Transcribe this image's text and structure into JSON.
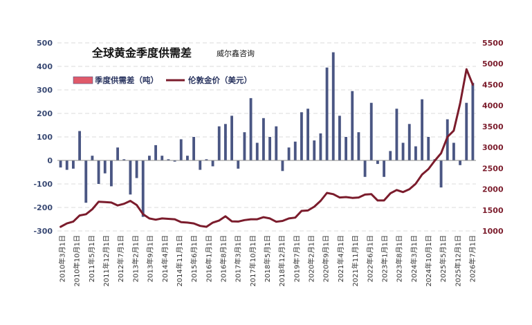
{
  "chart_data": {
    "type": "bar+line",
    "title": "全球黄金季度供需差",
    "subtitle": "威尔鑫咨询",
    "legend": {
      "placement": "top-left",
      "items": [
        {
          "label": "季度供需差（吨）",
          "kind": "bar",
          "color": "#4a5683"
        },
        {
          "label": "伦敦金价（美元）",
          "kind": "line",
          "color": "#7b1c2c"
        }
      ]
    },
    "left_axis": {
      "ticks": [
        "500",
        "400",
        "300",
        "200",
        "100",
        "0",
        "-100",
        "-200",
        "-300"
      ],
      "ylim": [
        -300,
        500
      ],
      "color": "#3a4a74"
    },
    "right_axis": {
      "ticks": [
        "5500",
        "5000",
        "4500",
        "4000",
        "3500",
        "3000",
        "2500",
        "2000",
        "1500",
        "1000"
      ],
      "ylim": [
        1000,
        5500
      ],
      "color": "#7b1c2c"
    },
    "x_tick_labels": [
      "2010年3月1日",
      "2010年10月1日",
      "2011年5月1日",
      "2011年12月1日",
      "2012年7月1日",
      "2013年2月1日",
      "2013年9月1日",
      "2014年4月1日",
      "2014年11月1日",
      "2015年6月1日",
      "2016年1月1日",
      "2016年8月1日",
      "2017年3月1日",
      "2017年10月1日",
      "2018年5月1日",
      "2018年12月1日",
      "2019年7月1日",
      "2020年2月1日",
      "2020年9月1日",
      "2021年4月1日",
      "2021年11月1日",
      "2022年6月1日",
      "2023年1月1日",
      "2023年8月1日",
      "2024年3月1日",
      "2024年10月1日",
      "2025年5月1日",
      "2025年12月1日",
      "2026年7月1日"
    ],
    "grid": "dashed horizontal",
    "series": [
      {
        "name": "季度供需差（吨）",
        "type": "bar",
        "axis": "left",
        "color": "#4a5683",
        "first_bar_color": "#e05a6a",
        "values": [
          -30,
          -40,
          -35,
          125,
          -180,
          20,
          -100,
          -55,
          -110,
          55,
          5,
          -145,
          -75,
          -240,
          20,
          65,
          20,
          5,
          -5,
          90,
          20,
          100,
          -40,
          5,
          -25,
          145,
          155,
          190,
          -35,
          120,
          265,
          75,
          180,
          100,
          145,
          -45,
          55,
          80,
          205,
          220,
          85,
          115,
          395,
          460,
          190,
          100,
          295,
          120,
          -70,
          245,
          -15,
          -70,
          40,
          220,
          75,
          155,
          60,
          260,
          100,
          5,
          -115,
          175,
          75,
          -20,
          245,
          330
        ]
      },
      {
        "name": "伦敦金价（美元）",
        "type": "line",
        "axis": "right",
        "color": "#7b1c2c",
        "values": [
          1100,
          1180,
          1225,
          1370,
          1400,
          1520,
          1700,
          1690,
          1680,
          1610,
          1650,
          1720,
          1620,
          1400,
          1300,
          1270,
          1300,
          1290,
          1280,
          1210,
          1200,
          1180,
          1120,
          1100,
          1200,
          1250,
          1350,
          1230,
          1225,
          1260,
          1280,
          1280,
          1330,
          1300,
          1220,
          1240,
          1300,
          1320,
          1480,
          1490,
          1580,
          1720,
          1910,
          1880,
          1800,
          1810,
          1790,
          1800,
          1870,
          1880,
          1730,
          1730,
          1900,
          1980,
          1930,
          2000,
          2130,
          2350,
          2480,
          2680,
          2860,
          3250,
          3400,
          4050,
          4870,
          4500
        ]
      }
    ]
  }
}
